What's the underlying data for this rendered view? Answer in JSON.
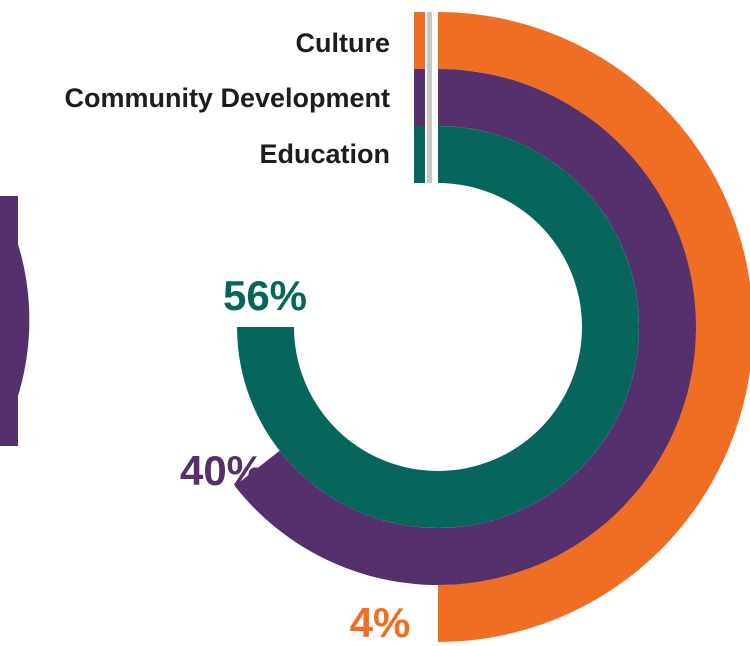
{
  "chart_data": {
    "type": "radial-bar",
    "unit": "%",
    "categories": [
      "Culture",
      "Community Development",
      "Education"
    ],
    "values": [
      4,
      40,
      56
    ],
    "value_labels": [
      "4%",
      "40%",
      "56%"
    ],
    "legend_position": "top-left of rings",
    "colors": {
      "Culture": "#f06e23",
      "Community Development": "#55306d",
      "Education": "#06665b",
      "track_marker": "#c8c8c8"
    }
  }
}
